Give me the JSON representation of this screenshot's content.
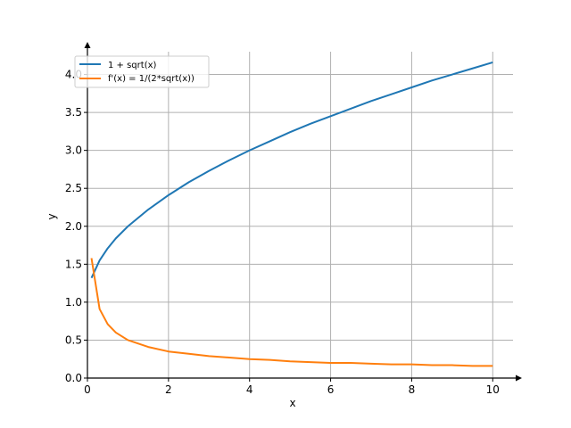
{
  "chart_data": {
    "type": "line",
    "title": "",
    "xlabel": "x",
    "ylabel": "y",
    "xlim": [
      0,
      10.5
    ],
    "ylim": [
      0,
      4.3
    ],
    "xticks": [
      0,
      2,
      4,
      6,
      8,
      10
    ],
    "yticks": [
      0.0,
      0.5,
      1.0,
      1.5,
      2.0,
      2.5,
      3.0,
      3.5,
      4.0
    ],
    "xtick_labels": [
      "0",
      "2",
      "4",
      "6",
      "8",
      "10"
    ],
    "ytick_labels": [
      "0.0",
      "0.5",
      "1.0",
      "1.5",
      "2.0",
      "2.5",
      "3.0",
      "3.5",
      "4.0"
    ],
    "grid": true,
    "legend_position": "top-left",
    "series": [
      {
        "name": "1 + sqrt(x)",
        "color": "#1f77b4",
        "x": [
          0.1,
          0.3,
          0.5,
          0.7,
          1.0,
          1.5,
          2.0,
          2.5,
          3.0,
          3.5,
          4.0,
          4.5,
          5.0,
          5.5,
          6.0,
          6.5,
          7.0,
          7.5,
          8.0,
          8.5,
          9.0,
          9.5,
          10.0
        ],
        "values": [
          1.32,
          1.55,
          1.71,
          1.84,
          2.0,
          2.22,
          2.41,
          2.58,
          2.73,
          2.87,
          3.0,
          3.12,
          3.24,
          3.35,
          3.45,
          3.55,
          3.65,
          3.74,
          3.83,
          3.92,
          4.0,
          4.08,
          4.16
        ]
      },
      {
        "name": "f'(x) = 1/(2*sqrt(x))",
        "color": "#ff7f0e",
        "x": [
          0.1,
          0.3,
          0.5,
          0.7,
          1.0,
          1.5,
          2.0,
          2.5,
          3.0,
          3.5,
          4.0,
          4.5,
          5.0,
          5.5,
          6.0,
          6.5,
          7.0,
          7.5,
          8.0,
          8.5,
          9.0,
          9.5,
          10.0
        ],
        "values": [
          1.58,
          0.91,
          0.71,
          0.6,
          0.5,
          0.41,
          0.35,
          0.32,
          0.29,
          0.27,
          0.25,
          0.24,
          0.22,
          0.21,
          0.2,
          0.2,
          0.19,
          0.18,
          0.18,
          0.17,
          0.17,
          0.16,
          0.16
        ]
      }
    ]
  }
}
